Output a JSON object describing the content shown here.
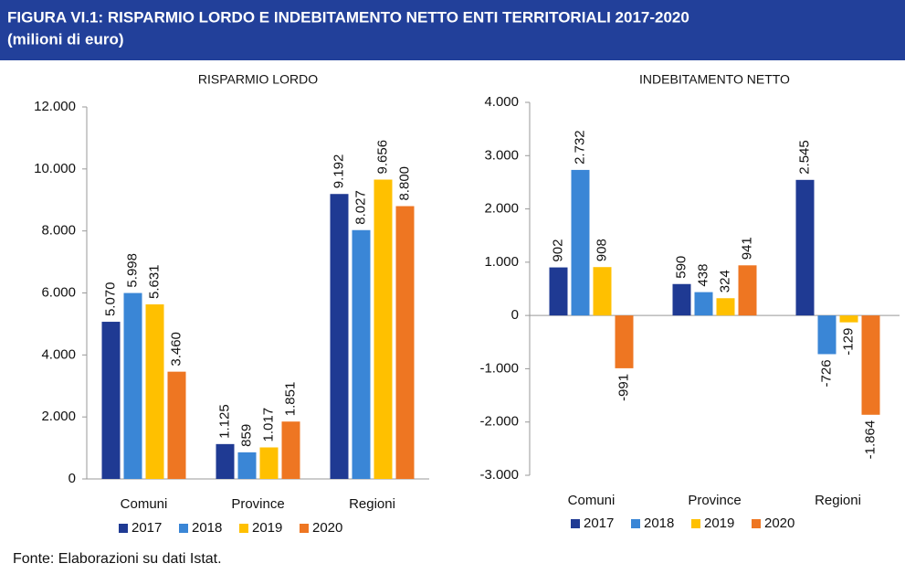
{
  "title": "FIGURA VI.1: RISPARMIO LORDO E INDEBITAMENTO NETTO ENTI TERRITORIALI 2017-2020",
  "subtitle": "(milioni di euro)",
  "source": "Fonte: Elaborazioni su dati Istat.",
  "chart_data": [
    {
      "type": "bar",
      "title": "RISPARMIO LORDO",
      "categories": [
        "Comuni",
        "Province",
        "Regioni"
      ],
      "series": [
        {
          "name": "2017",
          "color": "#1f3a93",
          "values": [
            5070,
            1125,
            9192
          ],
          "value_labels": [
            "5.070",
            "1.125",
            "9.192"
          ]
        },
        {
          "name": "2018",
          "color": "#3a86d6",
          "values": [
            5998,
            859,
            8027
          ],
          "value_labels": [
            "5.998",
            "859",
            "8.027"
          ]
        },
        {
          "name": "2019",
          "color": "#ffc000",
          "values": [
            5631,
            1017,
            9656
          ],
          "value_labels": [
            "5.631",
            "1.017",
            "9.656"
          ]
        },
        {
          "name": "2020",
          "color": "#ee7622",
          "values": [
            3460,
            1851,
            8800
          ],
          "value_labels": [
            "3.460",
            "1.851",
            "8.800"
          ]
        }
      ],
      "ylim": [
        0,
        12000
      ],
      "yticks": [
        0,
        {
          "value": 2000,
          "label": "2.000"
        },
        {
          "value": 4000,
          "label": "4.000"
        },
        {
          "value": 6000,
          "label": "6.000"
        },
        {
          "value": 8000,
          "label": "8.000"
        },
        {
          "value": 10000,
          "label": "10.000"
        },
        {
          "value": 12000,
          "label": "12.000"
        }
      ],
      "grid": false,
      "legend": "bottom"
    },
    {
      "type": "bar",
      "title": "INDEBITAMENTO NETTO",
      "categories": [
        "Comuni",
        "Province",
        "Regioni"
      ],
      "series": [
        {
          "name": "2017",
          "color": "#1f3a93",
          "values": [
            902,
            590,
            2545
          ],
          "value_labels": [
            "902",
            "590",
            "2.545"
          ]
        },
        {
          "name": "2018",
          "color": "#3a86d6",
          "values": [
            2732,
            438,
            -726
          ],
          "value_labels": [
            "2.732",
            "438",
            "-726"
          ]
        },
        {
          "name": "2019",
          "color": "#ffc000",
          "values": [
            908,
            324,
            -129
          ],
          "value_labels": [
            "908",
            "324",
            "-129"
          ]
        },
        {
          "name": "2020",
          "color": "#ee7622",
          "values": [
            -991,
            941,
            -1864
          ],
          "value_labels": [
            "-991",
            "941",
            "-1.864"
          ]
        }
      ],
      "ylim": [
        -3000,
        4000
      ],
      "yticks": [
        {
          "value": -3000,
          "label": "-3.000"
        },
        {
          "value": -2000,
          "label": "-2.000"
        },
        {
          "value": -1000,
          "label": "-1.000"
        },
        0,
        {
          "value": 1000,
          "label": "1.000"
        },
        {
          "value": 2000,
          "label": "2.000"
        },
        {
          "value": 3000,
          "label": "3.000"
        },
        {
          "value": 4000,
          "label": "4.000"
        }
      ],
      "grid": false,
      "legend": "bottom"
    }
  ]
}
